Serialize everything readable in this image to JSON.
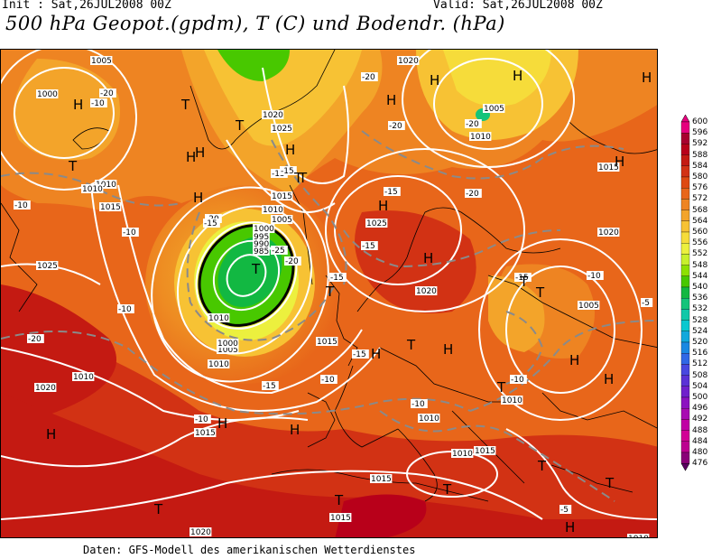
{
  "header": {
    "init": "Init : Sat,26JUL2008 00Z",
    "valid": "Valid: Sat,26JUL2008 00Z",
    "title": "500 hPa Geopot.(gpdm), T (C) und Bodendr. (hPa)"
  },
  "footer": "Daten: GFS-Modell des amerikanischen Wetterdienstes",
  "legend": {
    "labels": [
      "600",
      "596",
      "592",
      "588",
      "584",
      "580",
      "576",
      "572",
      "568",
      "564",
      "560",
      "556",
      "552",
      "548",
      "544",
      "540",
      "536",
      "532",
      "528",
      "524",
      "520",
      "516",
      "512",
      "508",
      "504",
      "500",
      "496",
      "492",
      "488",
      "484",
      "480",
      "476"
    ],
    "colors": [
      "#e6007e",
      "#a8002f",
      "#b8001a",
      "#c41a12",
      "#d23214",
      "#de4a12",
      "#e8661a",
      "#ee8422",
      "#f3a42a",
      "#f7c234",
      "#f6dc3a",
      "#ecf03e",
      "#c8f02c",
      "#8ee000",
      "#48c800",
      "#12b842",
      "#14c47a",
      "#10c8a8",
      "#0ac8d0",
      "#12a8dc",
      "#1a88e2",
      "#3068e6",
      "#4848e0",
      "#5a32d6",
      "#7020cc",
      "#8c12c0",
      "#a80cb2",
      "#c000a4",
      "#d20096",
      "#bc0090",
      "#8a0078",
      "#5a0060"
    ]
  },
  "map": {
    "pressure_labels": [
      "1005",
      "1000",
      "1010",
      "1015",
      "1020",
      "1025",
      "1010",
      "1005",
      "1000",
      "995",
      "990",
      "985",
      "1015",
      "1020",
      "1025",
      "1015",
      "1010",
      "1005",
      "1000",
      "1010",
      "1015",
      "1020",
      "1025",
      "1005",
      "1010",
      "1015",
      "1020",
      "1010",
      "1005",
      "1010",
      "1020",
      "1010",
      "1015",
      "1010",
      "1015",
      "1010",
      "1015",
      "1020",
      "1010"
    ],
    "temp_labels": [
      "-10",
      "-20",
      "-15",
      "-20",
      "-20",
      "-20",
      "-15",
      "-15",
      "-20",
      "-20",
      "-15",
      "-15",
      "-10",
      "-15",
      "-20",
      "-25",
      "-20",
      "-10",
      "-15",
      "-10",
      "-10",
      "-10",
      "-10",
      "-15",
      "-5",
      "-10",
      "-5",
      "-15",
      "-10"
    ],
    "pressure_centres": [
      "H",
      "T",
      "T",
      "H",
      "H",
      "T",
      "H",
      "T",
      "H",
      "H",
      "H",
      "H",
      "T",
      "H",
      "H",
      "H",
      "H",
      "T",
      "T",
      "H",
      "T",
      "H",
      "H",
      "H",
      "T",
      "T",
      "H",
      "H",
      "H",
      "T",
      "T",
      "T",
      "T",
      "T",
      "H",
      "T"
    ]
  }
}
